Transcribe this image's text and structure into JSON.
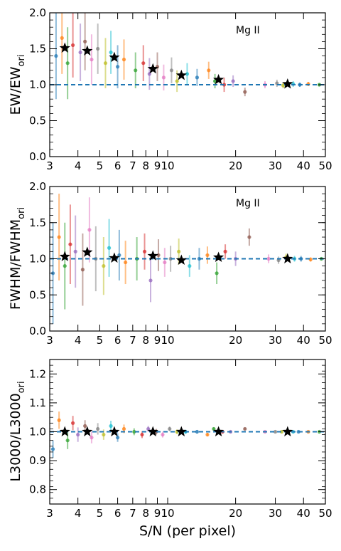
{
  "chart_data": [
    {
      "type": "scatter",
      "annotation": "Mg II",
      "ylabel_main": "EW/EW",
      "ylabel_sub": "ori",
      "x_scale": "log",
      "xlim": [
        3,
        50
      ],
      "ylim": [
        0.0,
        2.0
      ],
      "yticks": [
        "0.0",
        "0.5",
        "1.0",
        "1.5",
        "2.0"
      ],
      "reference_line": 1.0,
      "medians": {
        "x": [
          3.5,
          4.4,
          5.8,
          8.6,
          11.5,
          16.8,
          34.0
        ],
        "y": [
          1.51,
          1.47,
          1.38,
          1.22,
          1.13,
          1.07,
          1.01
        ]
      },
      "scatter_points": {
        "x": [
          3.2,
          3.4,
          3.6,
          3.8,
          4.1,
          4.3,
          4.6,
          4.9,
          5.3,
          5.6,
          6.0,
          6.4,
          7.2,
          7.8,
          8.3,
          9.0,
          9.6,
          10.4,
          11.0,
          12.2,
          13.5,
          15.2,
          16.2,
          17.8,
          19.5,
          22.0,
          27.0,
          30.5,
          32.5,
          36.0,
          38.5,
          42.0,
          47.0
        ],
        "y": [
          1.4,
          1.65,
          1.3,
          1.55,
          1.45,
          1.6,
          1.35,
          1.5,
          1.3,
          1.45,
          1.25,
          1.35,
          1.2,
          1.3,
          1.15,
          1.25,
          1.1,
          1.2,
          1.05,
          1.15,
          1.1,
          1.2,
          1.05,
          1.0,
          1.05,
          0.9,
          1.0,
          1.02,
          0.99,
          1.01,
          1.0,
          1.01,
          1.0
        ],
        "err": [
          0.6,
          0.5,
          0.5,
          0.45,
          0.4,
          0.4,
          0.35,
          0.35,
          0.35,
          0.3,
          0.3,
          0.28,
          0.25,
          0.25,
          0.22,
          0.2,
          0.18,
          0.18,
          0.15,
          0.15,
          0.12,
          0.12,
          0.1,
          0.1,
          0.08,
          0.06,
          0.05,
          0.05,
          0.04,
          0.04,
          0.03,
          0.03,
          0.02
        ]
      }
    },
    {
      "type": "scatter",
      "annotation": "Mg II",
      "ylabel_main": "FWHM/FWHM",
      "ylabel_sub": "ori",
      "x_scale": "log",
      "xlim": [
        3,
        50
      ],
      "ylim": [
        0.0,
        2.0
      ],
      "yticks": [
        "0.0",
        "0.5",
        "1.0",
        "1.5",
        "2.0"
      ],
      "reference_line": 1.0,
      "medians": {
        "x": [
          3.5,
          4.4,
          5.8,
          8.6,
          11.5,
          16.8,
          34.0
        ],
        "y": [
          1.03,
          1.09,
          1.01,
          1.04,
          0.98,
          1.02,
          1.0
        ]
      },
      "scatter_points": {
        "x": [
          3.1,
          3.3,
          3.5,
          3.7,
          3.9,
          4.2,
          4.5,
          4.8,
          5.2,
          5.5,
          6.1,
          6.5,
          7.3,
          7.9,
          8.4,
          9.1,
          9.7,
          10.3,
          11.2,
          12.5,
          13.8,
          15.0,
          16.5,
          18.0,
          20.0,
          23.0,
          28.0,
          31.0,
          33.5,
          36.5,
          39.0,
          43.0,
          48.0
        ],
        "y": [
          0.8,
          1.3,
          0.9,
          1.2,
          1.1,
          0.85,
          1.4,
          1.0,
          0.9,
          1.15,
          1.05,
          0.95,
          1.0,
          1.1,
          0.7,
          1.05,
          0.95,
          1.0,
          1.1,
          0.9,
          1.0,
          1.05,
          0.8,
          1.1,
          1.0,
          1.3,
          1.0,
          0.98,
          1.02,
          1.0,
          1.0,
          0.99,
          1.0
        ],
        "err": [
          0.7,
          0.6,
          0.6,
          0.55,
          0.5,
          0.5,
          0.45,
          0.45,
          0.4,
          0.4,
          0.35,
          0.3,
          0.3,
          0.25,
          0.3,
          0.22,
          0.2,
          0.18,
          0.18,
          0.15,
          0.15,
          0.12,
          0.15,
          0.1,
          0.1,
          0.12,
          0.06,
          0.05,
          0.05,
          0.04,
          0.04,
          0.03,
          0.02
        ]
      }
    },
    {
      "type": "scatter",
      "annotation": "",
      "ylabel_main": "L3000/L3000",
      "ylabel_sub": "ori",
      "xlabel": "S/N (per pixel)",
      "x_scale": "log",
      "xlim": [
        3,
        50
      ],
      "ylim": [
        0.75,
        1.25
      ],
      "yticks": [
        "0.8",
        "0.9",
        "1.0",
        "1.1",
        "1.2"
      ],
      "reference_line": 1.0,
      "medians": {
        "x": [
          3.5,
          4.4,
          5.8,
          8.6,
          11.5,
          16.8,
          34.0
        ],
        "y": [
          1.0,
          1.0,
          1.0,
          1.0,
          1.0,
          1.0,
          1.0
        ]
      },
      "scatter_points": {
        "x": [
          3.1,
          3.3,
          3.6,
          3.8,
          4.0,
          4.3,
          4.6,
          4.9,
          5.2,
          5.6,
          6.0,
          6.4,
          7.1,
          7.7,
          8.2,
          8.9,
          9.5,
          10.2,
          11.0,
          12.0,
          13.5,
          15.0,
          16.0,
          17.5,
          19.0,
          22.0,
          27.0,
          30.0,
          32.0,
          36.0,
          38.0,
          42.0,
          47.0
        ],
        "y": [
          0.94,
          1.04,
          0.97,
          1.03,
          0.99,
          1.02,
          0.98,
          1.01,
          0.99,
          1.02,
          0.98,
          1.01,
          1.0,
          0.99,
          1.01,
          1.0,
          0.99,
          1.01,
          1.0,
          1.0,
          1.0,
          0.99,
          1.01,
          1.0,
          1.0,
          1.01,
          1.0,
          1.0,
          1.0,
          1.0,
          1.0,
          1.0,
          1.0
        ],
        "err": [
          0.03,
          0.03,
          0.03,
          0.025,
          0.025,
          0.02,
          0.02,
          0.02,
          0.018,
          0.018,
          0.015,
          0.015,
          0.012,
          0.012,
          0.01,
          0.01,
          0.01,
          0.008,
          0.008,
          0.007,
          0.006,
          0.006,
          0.005,
          0.005,
          0.004,
          0.004,
          0.003,
          0.003,
          0.003,
          0.002,
          0.002,
          0.002,
          0.002
        ]
      }
    }
  ],
  "shared": {
    "xticks_major": [
      "3",
      "4",
      "5",
      "6",
      "7",
      "8",
      "9",
      "10",
      "20",
      "30",
      "40",
      "50"
    ],
    "point_colors": [
      "#1f77b4",
      "#ff7f0e",
      "#2ca02c",
      "#d62728",
      "#9467bd",
      "#8c564b",
      "#e377c2",
      "#7f7f7f",
      "#bcbd22",
      "#17becf"
    ],
    "reference_line_color": "#1f77b4",
    "median_marker_color": "#000000"
  }
}
